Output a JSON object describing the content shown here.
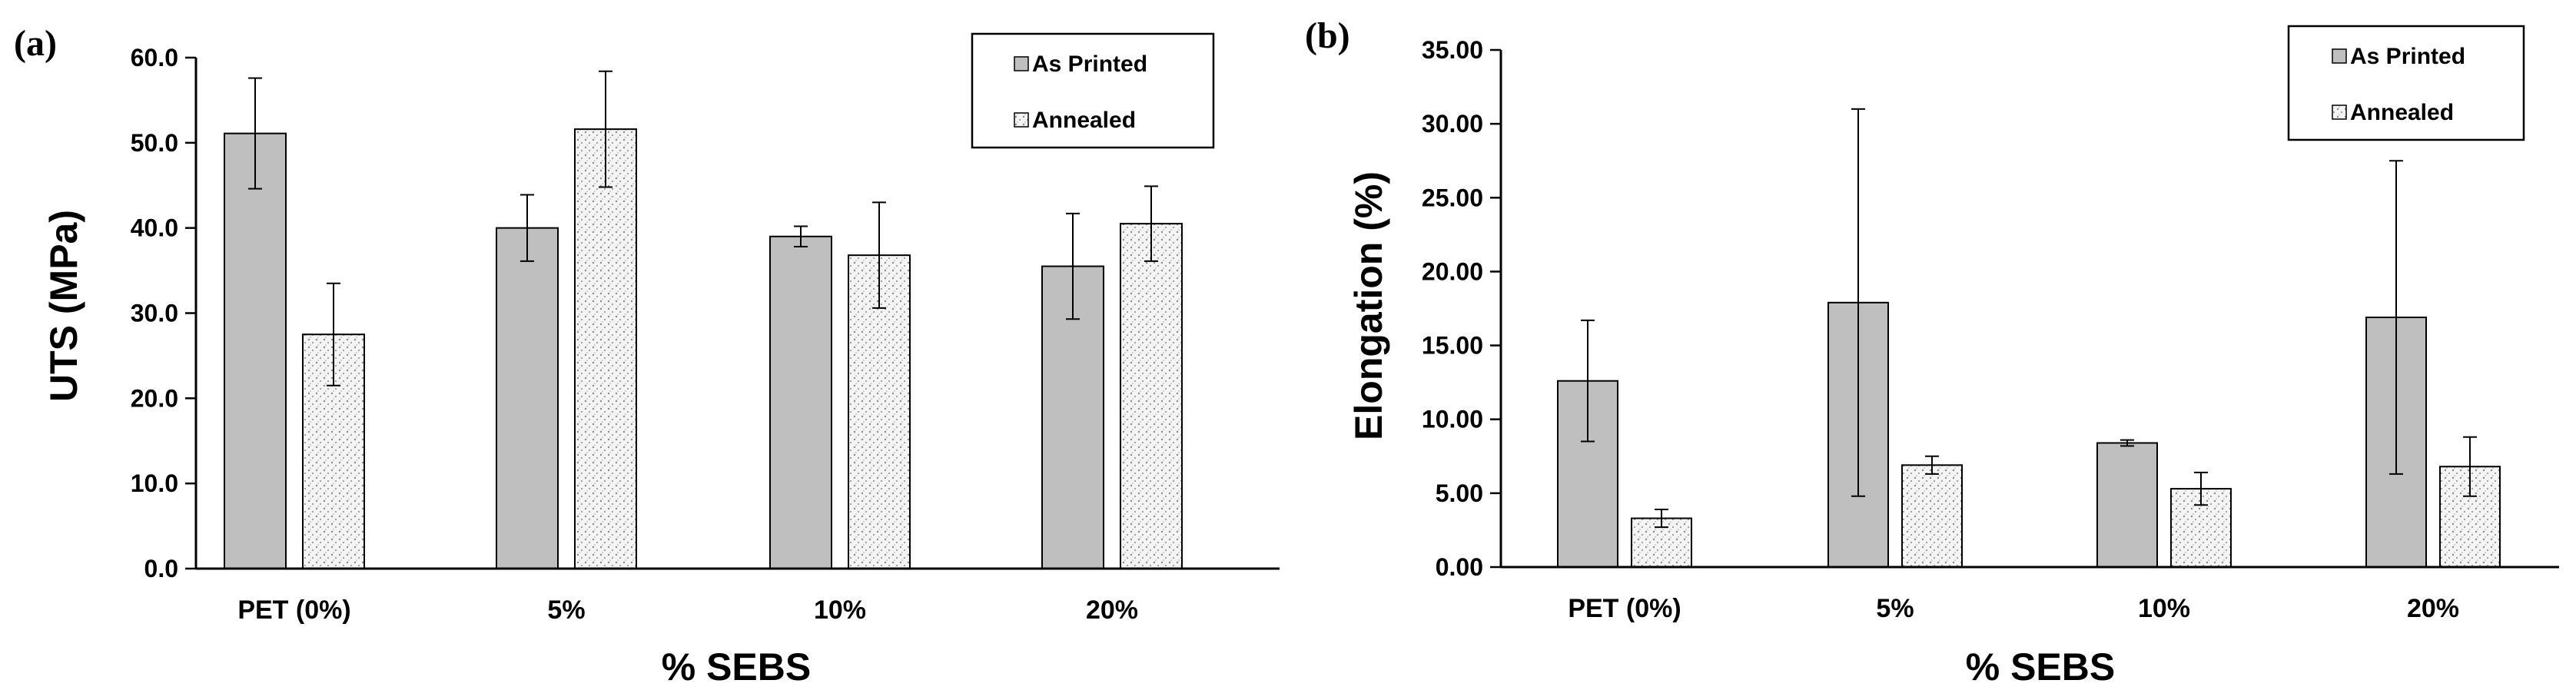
{
  "chart_data": [
    {
      "type": "bar",
      "panel_label": "(a)",
      "categories": [
        "PET (0%)",
        "5%",
        "10%",
        "20%"
      ],
      "series": [
        {
          "name": "As Printed",
          "values": [
            51.1,
            40.0,
            39.0,
            35.5
          ],
          "errors": [
            6.5,
            3.9,
            1.2,
            6.2
          ],
          "color": "#bfbfbf",
          "pattern": "solid"
        },
        {
          "name": "Annealed",
          "values": [
            27.5,
            51.6,
            36.8,
            40.5
          ],
          "errors": [
            6.0,
            6.8,
            6.2,
            4.4
          ],
          "color": "#f2f2f2",
          "pattern": "dotted"
        }
      ],
      "xlabel": "% SEBS",
      "ylabel": "UTS (MPa)",
      "ylim": [
        0,
        60
      ],
      "yticks": [
        "0.0",
        "10.0",
        "20.0",
        "30.0",
        "40.0",
        "50.0",
        "60.0"
      ],
      "grid": false,
      "legend_position": "top-right"
    },
    {
      "type": "bar",
      "panel_label": "(b)",
      "categories": [
        "PET (0%)",
        "5%",
        "10%",
        "20%"
      ],
      "series": [
        {
          "name": "As Printed",
          "values": [
            12.6,
            17.9,
            8.4,
            16.9
          ],
          "errors": [
            4.1,
            13.1,
            0.2,
            10.6
          ],
          "color": "#bfbfbf",
          "pattern": "solid"
        },
        {
          "name": "Annealed",
          "values": [
            3.3,
            6.9,
            5.3,
            6.8
          ],
          "errors": [
            0.6,
            0.6,
            1.1,
            2.0
          ],
          "color": "#f2f2f2",
          "pattern": "dotted"
        }
      ],
      "xlabel": "% SEBS",
      "ylabel": "Elongation  (%)",
      "ylim": [
        0,
        35
      ],
      "yticks": [
        "0.00",
        "5.00",
        "10.00",
        "15.00",
        "20.00",
        "25.00",
        "30.00",
        "35.00"
      ],
      "grid": false,
      "legend_position": "top-right"
    }
  ]
}
